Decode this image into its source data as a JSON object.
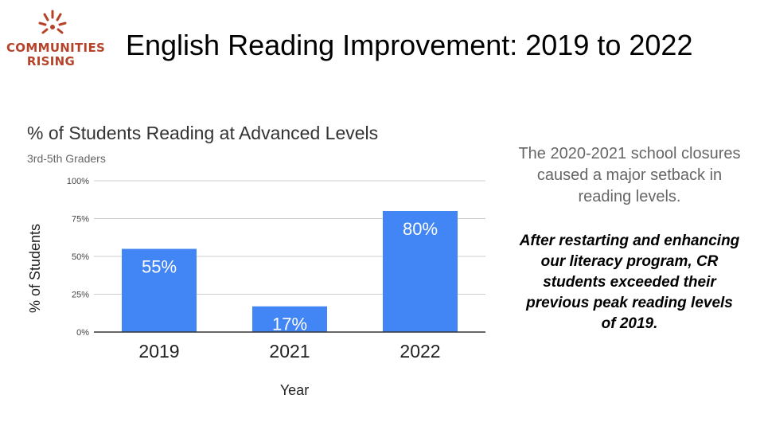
{
  "logo": {
    "line1": "COMMUNITIES",
    "line2": "RISING",
    "color": "#b5432a"
  },
  "slide_title": "English Reading Improvement: 2019 to 2022",
  "side_note": "The 2020-2021 school closures caused a major setback in reading levels.",
  "side_emphasis": "After restarting and enhancing our literacy program, CR students exceeded their previous peak reading levels of 2019.",
  "colors": {
    "bar": "#4285f4",
    "grid": "#cccccc",
    "axis": "#333333"
  },
  "chart_data": {
    "type": "bar",
    "title": "% of Students Reading at Advanced Levels",
    "subtitle": "3rd-5th Graders",
    "xlabel": "Year",
    "ylabel": "% of Students",
    "categories": [
      "2019",
      "2021",
      "2022"
    ],
    "values": [
      55,
      17,
      80
    ],
    "data_labels": [
      "55%",
      "17%",
      "80%"
    ],
    "yticks": [
      0,
      25,
      50,
      75,
      100
    ],
    "ytick_labels": [
      "0%",
      "25%",
      "50%",
      "75%",
      "100%"
    ],
    "ylim": [
      0,
      100
    ],
    "grid": true
  }
}
